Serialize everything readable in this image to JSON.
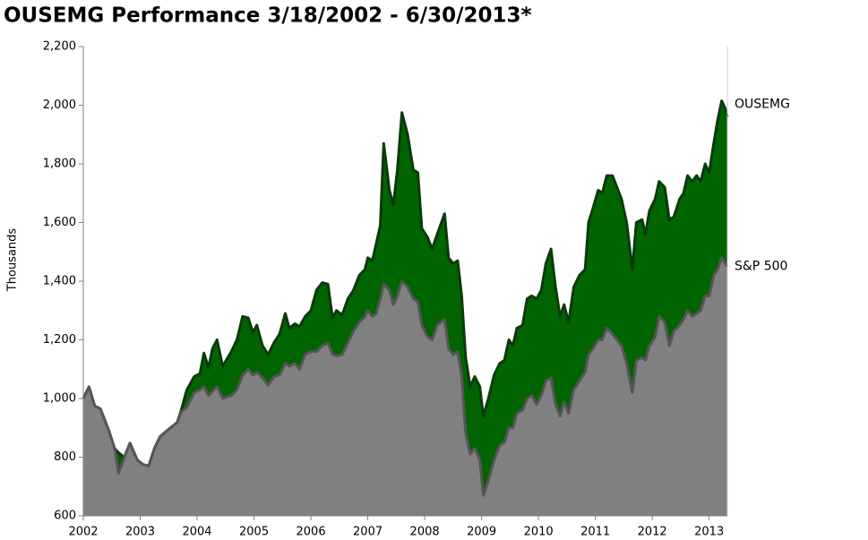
{
  "chart_data": {
    "type": "area",
    "title": "OUSEMG Performance 3/18/2002 - 6/30/2013*",
    "y_label": "Thousands",
    "x": [
      2002.0,
      2002.1,
      2002.2,
      2002.3,
      2002.45,
      2002.55,
      2002.62,
      2002.72,
      2002.82,
      2002.95,
      2003.05,
      2003.15,
      2003.25,
      2003.35,
      2003.5,
      2003.65,
      2003.72,
      2003.82,
      2003.95,
      2004.05,
      2004.12,
      2004.2,
      2004.27,
      2004.35,
      2004.45,
      2004.6,
      2004.7,
      2004.8,
      2004.9,
      2004.98,
      2005.05,
      2005.15,
      2005.25,
      2005.35,
      2005.45,
      2005.55,
      2005.62,
      2005.72,
      2005.8,
      2005.9,
      2006.0,
      2006.1,
      2006.2,
      2006.3,
      2006.38,
      2006.45,
      2006.55,
      2006.65,
      2006.75,
      2006.85,
      2006.95,
      2007.0,
      2007.08,
      2007.15,
      2007.22,
      2007.28,
      2007.38,
      2007.45,
      2007.52,
      2007.6,
      2007.7,
      2007.8,
      2007.88,
      2007.95,
      2008.05,
      2008.13,
      2008.22,
      2008.35,
      2008.42,
      2008.5,
      2008.58,
      2008.65,
      2008.72,
      2008.8,
      2008.88,
      2008.97,
      2009.03,
      2009.12,
      2009.22,
      2009.32,
      2009.4,
      2009.48,
      2009.55,
      2009.62,
      2009.72,
      2009.8,
      2009.88,
      2009.97,
      2010.05,
      2010.13,
      2010.22,
      2010.3,
      2010.38,
      2010.45,
      2010.53,
      2010.62,
      2010.72,
      2010.82,
      2010.88,
      2010.96,
      2011.05,
      2011.12,
      2011.2,
      2011.3,
      2011.38,
      2011.46,
      2011.55,
      2011.65,
      2011.72,
      2011.82,
      2011.88,
      2011.95,
      2012.05,
      2012.12,
      2012.22,
      2012.3,
      2012.38,
      2012.48,
      2012.55,
      2012.62,
      2012.7,
      2012.78,
      2012.85,
      2012.93,
      2013.0,
      2013.08,
      2013.15,
      2013.22,
      2013.28,
      2013.32
    ],
    "series": [
      {
        "name": "OUSEMG",
        "color": "#006400",
        "values": [
          1000,
          1040,
          975,
          965,
          890,
          830,
          815,
          800,
          848,
          790,
          775,
          770,
          830,
          870,
          895,
          918,
          960,
          1030,
          1075,
          1085,
          1155,
          1105,
          1170,
          1200,
          1110,
          1160,
          1200,
          1280,
          1275,
          1225,
          1250,
          1180,
          1150,
          1190,
          1220,
          1290,
          1240,
          1255,
          1245,
          1280,
          1300,
          1370,
          1395,
          1390,
          1275,
          1300,
          1285,
          1340,
          1370,
          1420,
          1440,
          1480,
          1470,
          1530,
          1590,
          1870,
          1710,
          1660,
          1780,
          1975,
          1900,
          1780,
          1770,
          1580,
          1550,
          1510,
          1560,
          1630,
          1480,
          1460,
          1470,
          1350,
          1140,
          1040,
          1075,
          1040,
          940,
          1000,
          1080,
          1120,
          1130,
          1200,
          1180,
          1240,
          1250,
          1340,
          1350,
          1340,
          1370,
          1460,
          1510,
          1380,
          1280,
          1320,
          1260,
          1380,
          1420,
          1440,
          1600,
          1650,
          1710,
          1700,
          1760,
          1760,
          1720,
          1680,
          1600,
          1440,
          1600,
          1610,
          1560,
          1640,
          1680,
          1740,
          1720,
          1610,
          1620,
          1680,
          1700,
          1760,
          1740,
          1760,
          1740,
          1800,
          1770,
          1870,
          1950,
          2015,
          1990,
          1960
        ]
      },
      {
        "name": "S&P 500",
        "color": "#808080",
        "values": [
          1000,
          1040,
          975,
          965,
          890,
          830,
          745,
          800,
          848,
          790,
          775,
          770,
          830,
          870,
          895,
          918,
          955,
          970,
          1020,
          1030,
          1040,
          1010,
          1025,
          1040,
          1000,
          1010,
          1030,
          1080,
          1100,
          1080,
          1090,
          1070,
          1045,
          1075,
          1080,
          1120,
          1110,
          1120,
          1100,
          1150,
          1160,
          1160,
          1180,
          1190,
          1150,
          1145,
          1150,
          1190,
          1230,
          1260,
          1280,
          1300,
          1280,
          1290,
          1340,
          1390,
          1370,
          1320,
          1350,
          1400,
          1380,
          1340,
          1330,
          1250,
          1210,
          1200,
          1250,
          1270,
          1170,
          1150,
          1160,
          1080,
          880,
          810,
          830,
          790,
          670,
          720,
          790,
          840,
          850,
          900,
          900,
          950,
          960,
          1000,
          1010,
          980,
          1010,
          1060,
          1070,
          980,
          940,
          990,
          950,
          1030,
          1060,
          1090,
          1150,
          1170,
          1200,
          1200,
          1240,
          1220,
          1200,
          1180,
          1120,
          1020,
          1130,
          1140,
          1130,
          1180,
          1210,
          1280,
          1260,
          1180,
          1230,
          1250,
          1270,
          1300,
          1280,
          1290,
          1300,
          1350,
          1350,
          1420,
          1440,
          1480,
          1460,
          1450
        ]
      }
    ],
    "xlim": [
      2002,
      2013.32
    ],
    "xticks": [
      2002,
      2003,
      2004,
      2005,
      2006,
      2007,
      2008,
      2009,
      2010,
      2011,
      2012,
      2013
    ],
    "ylim": [
      600,
      2200
    ],
    "yticks": [
      600,
      800,
      {
        "value": 1000,
        "label": "1,000"
      },
      {
        "value": 1200,
        "label": "1,200"
      },
      {
        "value": 1400,
        "label": "1,400"
      },
      {
        "value": 1600,
        "label": "1,600"
      },
      {
        "value": 1800,
        "label": "1,800"
      },
      {
        "value": 2000,
        "label": "2,000"
      },
      {
        "value": 2200,
        "label": "2,200"
      }
    ]
  }
}
